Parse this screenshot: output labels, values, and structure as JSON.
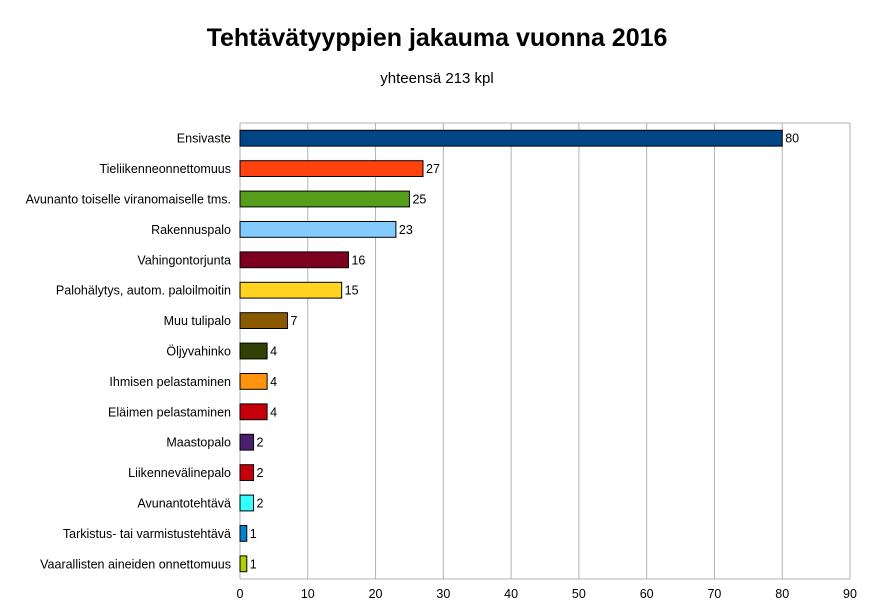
{
  "chart_data": {
    "type": "bar",
    "orientation": "horizontal",
    "title": "Tehtävätyyppien jakauma vuonna 2016",
    "subtitle": "yhteensä 213 kpl",
    "xlabel": "",
    "ylabel": "",
    "xlim": [
      0,
      90
    ],
    "x_ticks": [
      "0",
      "10",
      "20",
      "30",
      "40",
      "50",
      "60",
      "70",
      "80",
      "90"
    ],
    "grid": true,
    "legend": "none",
    "categories": [
      "Ensivaste",
      "Tieliikenneonnettomuus",
      "Avunanto toiselle viranomaiselle tms.",
      "Rakennuspalo",
      "Vahingontorjunta",
      "Palohälytys, autom. paloilmoitin",
      "Muu tulipalo",
      "Öljyvahinko",
      "Ihmisen pelastaminen",
      "Eläimen pelastaminen",
      "Maastopalo",
      "Liikennevälinepalo",
      "Avunantotehtävä",
      "Tarkistus- tai varmistustehtävä",
      "Vaarallisten aineiden onnettomuus"
    ],
    "values": [
      80,
      27,
      25,
      23,
      16,
      15,
      7,
      4,
      4,
      4,
      2,
      2,
      2,
      1,
      1
    ],
    "value_labels": [
      "80",
      "27",
      "25",
      "23",
      "16",
      "15",
      "7",
      "4",
      "4",
      "4",
      "2",
      "2",
      "2",
      "1",
      "1"
    ],
    "colors": [
      "#004586",
      "#ff420e",
      "#579d1c",
      "#83caff",
      "#7e0021",
      "#ffd320",
      "#8b5a00",
      "#314004",
      "#ff950e",
      "#c5000b",
      "#4b1f6f",
      "#c5000b",
      "#33ffff",
      "#0084d1",
      "#aecf00"
    ]
  }
}
